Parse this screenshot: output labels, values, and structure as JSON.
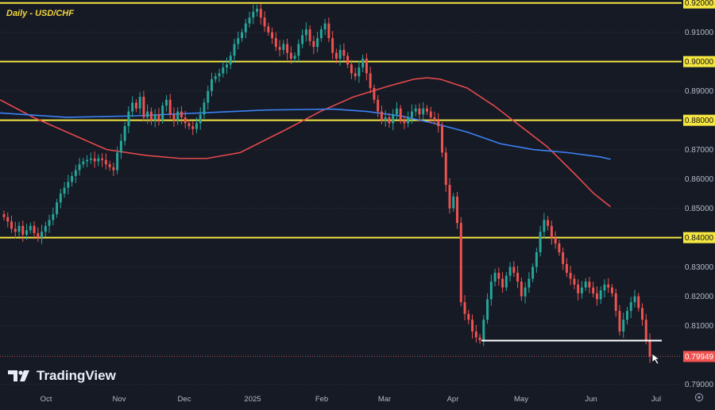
{
  "header": {
    "title": "Daily - USD/CHF"
  },
  "brand": {
    "name": "TradingView",
    "logo_icon": "tradingview-logo-icon"
  },
  "colors": {
    "background": "#161a25",
    "bull": "#26a69a",
    "bear": "#ef5350",
    "ma_red": "#e5484d",
    "ma_blue": "#3b82f6",
    "level_line": "#f5e642",
    "price_tag": "#ef5350"
  },
  "chart_data": {
    "type": "candlestick",
    "title": "Daily - USD/CHF",
    "ylim": [
      0.788,
      0.921
    ],
    "x_ticks": [
      "Oct",
      "Nov",
      "Dec",
      "2025",
      "Feb",
      "Mar",
      "Apr",
      "May",
      "Jun",
      "Jul"
    ],
    "y_ticks": [
      "0.92000",
      "0.91000",
      "0.90000",
      "0.89000",
      "0.88000",
      "0.87000",
      "0.86000",
      "0.85000",
      "0.84000",
      "0.83000",
      "0.82000",
      "0.81000",
      "0.80000",
      "0.79000"
    ],
    "horizontal_levels": [
      0.92,
      0.9,
      0.88,
      0.84
    ],
    "support_line": {
      "y": 0.8049,
      "x_start": 0.7337,
      "x_end": 1.0
    },
    "last_price": {
      "value": 0.79949,
      "label": "0.79949"
    },
    "close_series": [
      0.847,
      0.8455,
      0.843,
      0.842,
      0.844,
      0.841,
      0.8425,
      0.844,
      0.8415,
      0.84,
      0.842,
      0.844,
      0.846,
      0.848,
      0.852,
      0.855,
      0.857,
      0.859,
      0.861,
      0.863,
      0.865,
      0.866,
      0.8665,
      0.867,
      0.866,
      0.867,
      0.8665,
      0.865,
      0.864,
      0.863,
      0.869,
      0.873,
      0.878,
      0.883,
      0.886,
      0.884,
      0.888,
      0.881,
      0.883,
      0.88,
      0.882,
      0.88,
      0.885,
      0.887,
      0.882,
      0.88,
      0.883,
      0.881,
      0.879,
      0.878,
      0.877,
      0.879,
      0.882,
      0.886,
      0.89,
      0.894,
      0.895,
      0.896,
      0.898,
      0.899,
      0.902,
      0.906,
      0.908,
      0.91,
      0.913,
      0.915,
      0.917,
      0.918,
      0.915,
      0.912,
      0.91,
      0.908,
      0.905,
      0.904,
      0.906,
      0.903,
      0.901,
      0.902,
      0.906,
      0.909,
      0.911,
      0.907,
      0.905,
      0.908,
      0.911,
      0.913,
      0.908,
      0.903,
      0.901,
      0.904,
      0.902,
      0.899,
      0.896,
      0.895,
      0.898,
      0.901,
      0.896,
      0.891,
      0.887,
      0.883,
      0.88,
      0.881,
      0.879,
      0.882,
      0.884,
      0.88,
      0.879,
      0.881,
      0.883,
      0.884,
      0.882,
      0.884,
      0.883,
      0.881,
      0.88,
      0.878,
      0.869,
      0.858,
      0.85,
      0.854,
      0.845,
      0.818,
      0.814,
      0.812,
      0.808,
      0.806,
      0.805,
      0.812,
      0.819,
      0.825,
      0.828,
      0.826,
      0.823,
      0.827,
      0.83,
      0.828,
      0.825,
      0.82,
      0.823,
      0.826,
      0.83,
      0.835,
      0.842,
      0.846,
      0.844,
      0.84,
      0.838,
      0.835,
      0.831,
      0.828,
      0.826,
      0.824,
      0.821,
      0.823,
      0.825,
      0.823,
      0.821,
      0.819,
      0.822,
      0.824,
      0.823,
      0.821,
      0.815,
      0.808,
      0.812,
      0.815,
      0.818,
      0.82,
      0.816,
      0.812,
      0.805,
      0.7995
    ],
    "series": [
      {
        "name": "",
        "type": "sma",
        "x": [
          0.0,
          0.05,
          0.1,
          0.16,
          0.22,
          0.27,
          0.31,
          0.36,
          0.43,
          0.48,
          0.53,
          0.58,
          0.62,
          0.64,
          0.66,
          0.7,
          0.74,
          0.78,
          0.82,
          0.86,
          0.89,
          0.915
        ],
        "y": [
          0.887,
          0.881,
          0.876,
          0.87,
          0.868,
          0.867,
          0.867,
          0.869,
          0.877,
          0.883,
          0.888,
          0.8915,
          0.894,
          0.8945,
          0.894,
          0.891,
          0.885,
          0.878,
          0.871,
          0.862,
          0.855,
          0.8505
        ]
      },
      {
        "name": "",
        "type": "sma",
        "x": [
          0.0,
          0.1,
          0.2,
          0.3,
          0.4,
          0.5,
          0.55,
          0.6,
          0.65,
          0.7,
          0.75,
          0.8,
          0.85,
          0.9,
          0.915
        ],
        "y": [
          0.8825,
          0.881,
          0.8815,
          0.8825,
          0.8835,
          0.8838,
          0.883,
          0.8815,
          0.879,
          0.876,
          0.872,
          0.87,
          0.869,
          0.8675,
          0.8667
        ]
      }
    ]
  }
}
